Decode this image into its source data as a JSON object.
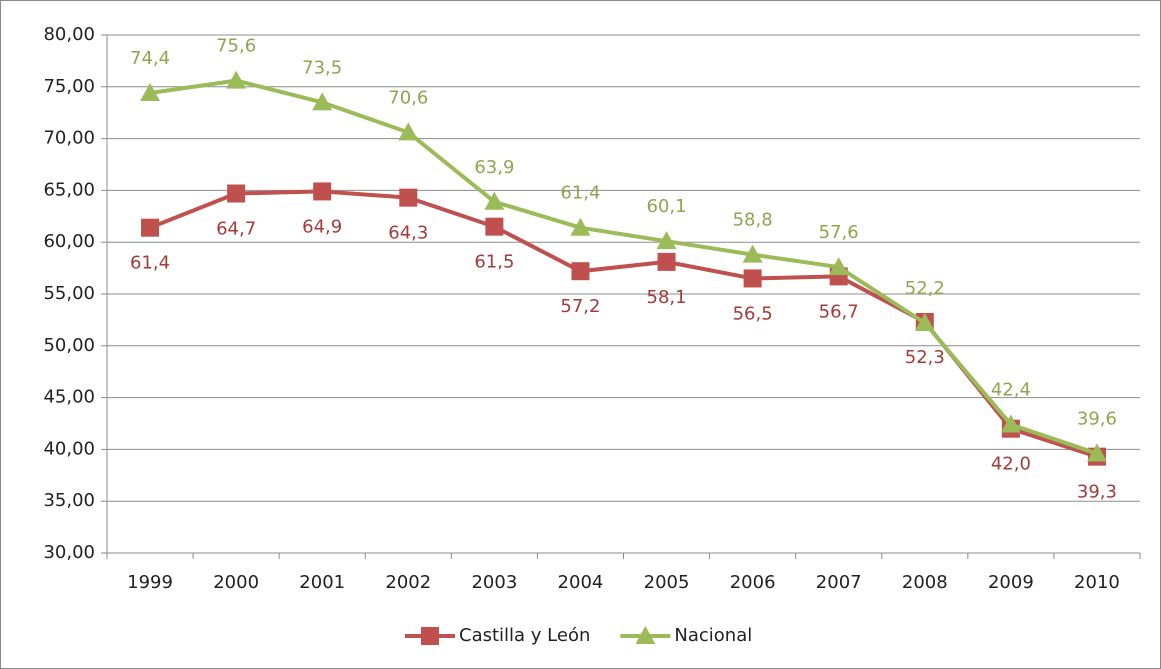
{
  "chart_data": {
    "type": "line",
    "categories": [
      "1999",
      "2000",
      "2001",
      "2002",
      "2003",
      "2004",
      "2005",
      "2006",
      "2007",
      "2008",
      "2009",
      "2010"
    ],
    "series": [
      {
        "name": "Castilla y León",
        "color": "#c0504d",
        "marker": "square",
        "values": [
          61.4,
          64.7,
          64.9,
          64.3,
          61.5,
          57.2,
          58.1,
          56.5,
          56.7,
          52.3,
          42.0,
          39.3
        ],
        "value_labels": [
          "61,4",
          "64,7",
          "64,9",
          "64,3",
          "61,5",
          "57,2",
          "58,1",
          "56,5",
          "56,7",
          "52,3",
          "42,0",
          "39,3"
        ]
      },
      {
        "name": "Nacional",
        "color": "#9bbb59",
        "marker": "triangle",
        "values": [
          74.4,
          75.6,
          73.5,
          70.6,
          63.9,
          61.4,
          60.1,
          58.8,
          57.6,
          52.2,
          42.4,
          39.6
        ],
        "value_labels": [
          "74,4",
          "75,6",
          "73,5",
          "70,6",
          "63,9",
          "61,4",
          "60,1",
          "58,8",
          "57,6",
          "52,2",
          "42,4",
          "39,6"
        ]
      }
    ],
    "ylim": [
      30,
      80
    ],
    "yticks": [
      {
        "value": 30,
        "label": "30,00"
      },
      {
        "value": 35,
        "label": "35,00"
      },
      {
        "value": 40,
        "label": "40,00"
      },
      {
        "value": 45,
        "label": "45,00"
      },
      {
        "value": 50,
        "label": "50,00"
      },
      {
        "value": 55,
        "label": "55,00"
      },
      {
        "value": 60,
        "label": "60,00"
      },
      {
        "value": 65,
        "label": "65,00"
      },
      {
        "value": 70,
        "label": "70,00"
      },
      {
        "value": 75,
        "label": "75,00"
      },
      {
        "value": 80,
        "label": "80,00"
      }
    ],
    "grid": true,
    "legend": "bottom"
  }
}
